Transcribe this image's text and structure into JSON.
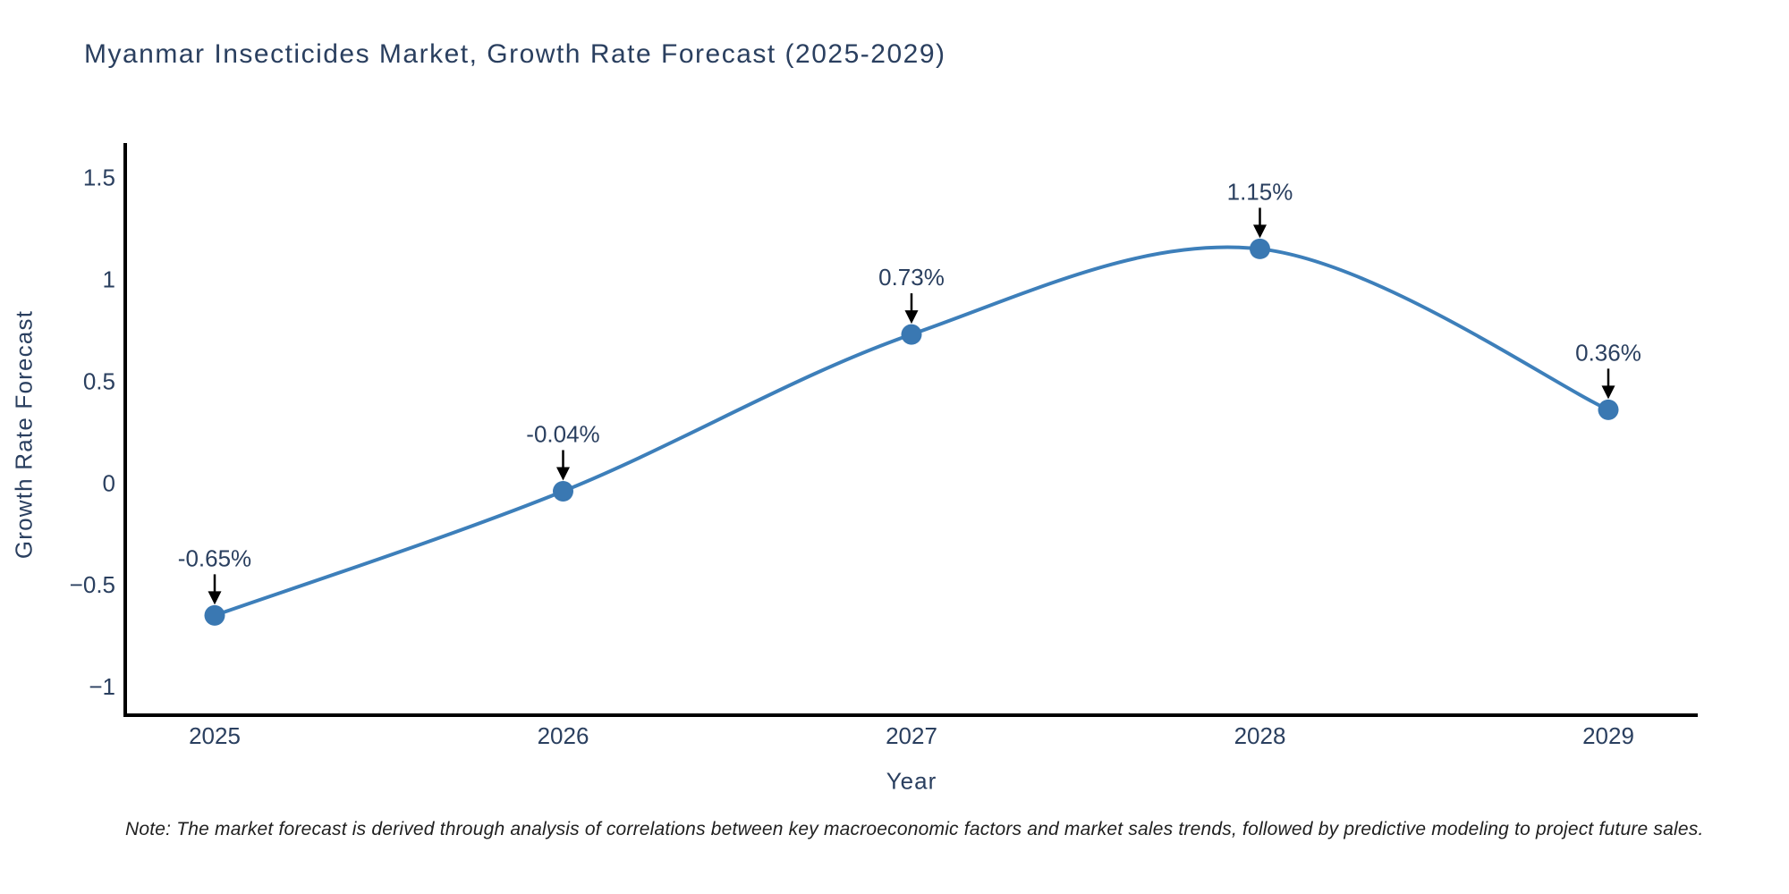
{
  "note": "Note: The market forecast is derived through analysis of correlations between key macroeconomic factors and market sales trends, followed by predictive modeling to project future sales.",
  "chart_data": {
    "type": "line",
    "title": "Myanmar Insecticides Market, Growth Rate Forecast (2025-2029)",
    "xlabel": "Year",
    "ylabel": "Growth Rate Forecast",
    "categories": [
      "2025",
      "2026",
      "2027",
      "2028",
      "2029"
    ],
    "values": [
      -0.65,
      -0.04,
      0.73,
      1.15,
      0.36
    ],
    "point_labels": [
      "-0.65%",
      "-0.04%",
      "0.73%",
      "1.15%",
      "0.36%"
    ],
    "line_shape": "spline",
    "grid": false,
    "legend": "none",
    "ylim": [
      -1.14,
      1.67
    ],
    "y_ticks": {
      "values": [
        -1,
        -0.5,
        0,
        0.5,
        1,
        1.5
      ],
      "labels": [
        "−1",
        "−0.5",
        "0",
        "0.5",
        "1",
        "1.5"
      ]
    },
    "colors": {
      "line": "#3d7fba",
      "marker": "#3a78b2",
      "text": "#2a3f5f",
      "axis": "#000000",
      "arrow": "#000000"
    }
  }
}
